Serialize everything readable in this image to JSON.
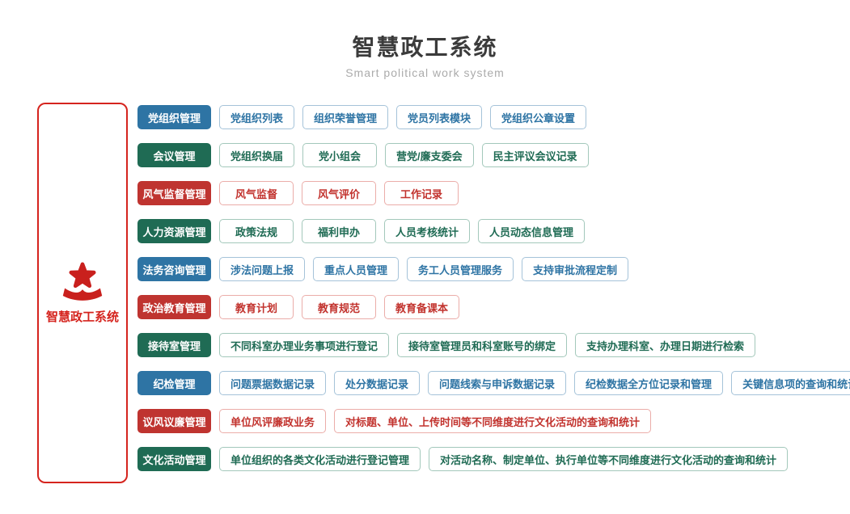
{
  "header": {
    "title": "智慧政工系统",
    "subtitle": "Smart political work system"
  },
  "sidebar": {
    "icon": "party-star-ribbon-icon",
    "label": "智慧政工系统"
  },
  "colors": {
    "blue": "#2e74a4",
    "green": "#1f6b54",
    "red": "#bf3430",
    "sidebar_red": "#d5241e"
  },
  "rows": [
    {
      "category": "党组织管理",
      "color": "blue",
      "items": [
        "党组织列表",
        "组织荣誉管理",
        "党员列表模块",
        "党组织公章设置"
      ]
    },
    {
      "category": "会议管理",
      "color": "green",
      "items": [
        "党组织换届",
        "党小组会",
        "营党/廉支委会",
        "民主评议会议记录"
      ]
    },
    {
      "category": "风气监督管理",
      "color": "red",
      "items": [
        "风气监督",
        "风气评价",
        "工作记录"
      ]
    },
    {
      "category": "人力资源管理",
      "color": "green",
      "items": [
        "政策法规",
        "福利申办",
        "人员考核统计",
        "人员动态信息管理"
      ]
    },
    {
      "category": "法务咨询管理",
      "color": "blue",
      "items": [
        "涉法问题上报",
        "重点人员管理",
        "务工人员管理服务",
        "支持审批流程定制"
      ]
    },
    {
      "category": "政治教育管理",
      "color": "red",
      "items": [
        "教育计划",
        "教育规范",
        "教育备课本"
      ]
    },
    {
      "category": "接待室管理",
      "color": "green",
      "items": [
        "不同科室办理业务事项进行登记",
        "接待室管理员和科室账号的绑定",
        "支持办理科室、办理日期进行检索"
      ]
    },
    {
      "category": "纪检管理",
      "color": "blue",
      "items": [
        "问题票据数据记录",
        "处分数据记录",
        "问题线索与申诉数据记录",
        "纪检数据全方位记录和管理",
        "关键信息项的查询和统计"
      ]
    },
    {
      "category": "议风议廉管理",
      "color": "red",
      "items": [
        "单位风评廉政业务",
        "对标题、单位、上传时间等不同维度进行文化活动的查询和统计"
      ]
    },
    {
      "category": "文化活动管理",
      "color": "green",
      "items": [
        "单位组织的各类文化活动进行登记管理",
        "对活动名称、制定单位、执行单位等不同维度进行文化活动的查询和统计"
      ]
    }
  ]
}
